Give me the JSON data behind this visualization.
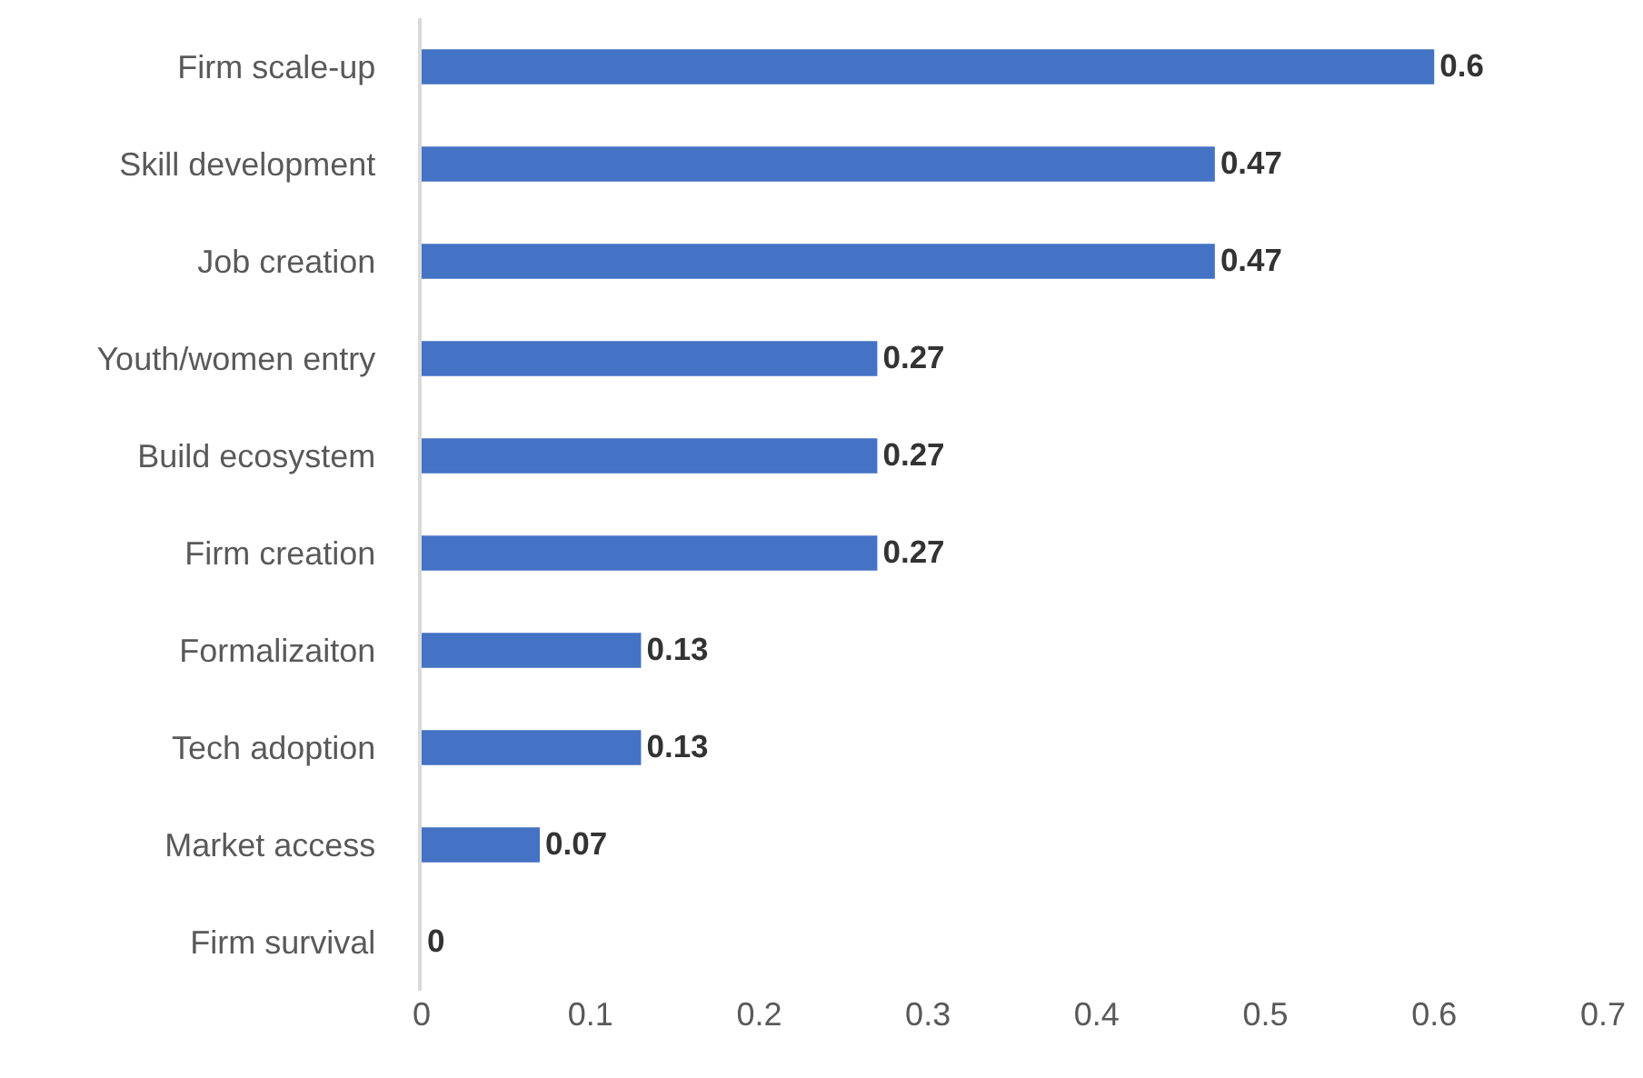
{
  "chart_data": {
    "type": "bar",
    "orientation": "horizontal",
    "categories": [
      "Firm scale-up",
      "Skill development",
      "Job creation",
      "Youth/women entry",
      "Build ecosystem",
      "Firm creation",
      "Formalizaiton",
      "Tech adoption",
      "Market access",
      "Firm survival"
    ],
    "values": [
      0.6,
      0.47,
      0.47,
      0.27,
      0.27,
      0.27,
      0.13,
      0.13,
      0.07,
      0
    ],
    "color": "#4472c4",
    "xlim": [
      0,
      0.7
    ],
    "xticks": [
      0,
      0.1,
      0.2,
      0.3,
      0.4,
      0.5,
      0.6,
      0.7
    ],
    "grid": false,
    "data_labels": true
  }
}
